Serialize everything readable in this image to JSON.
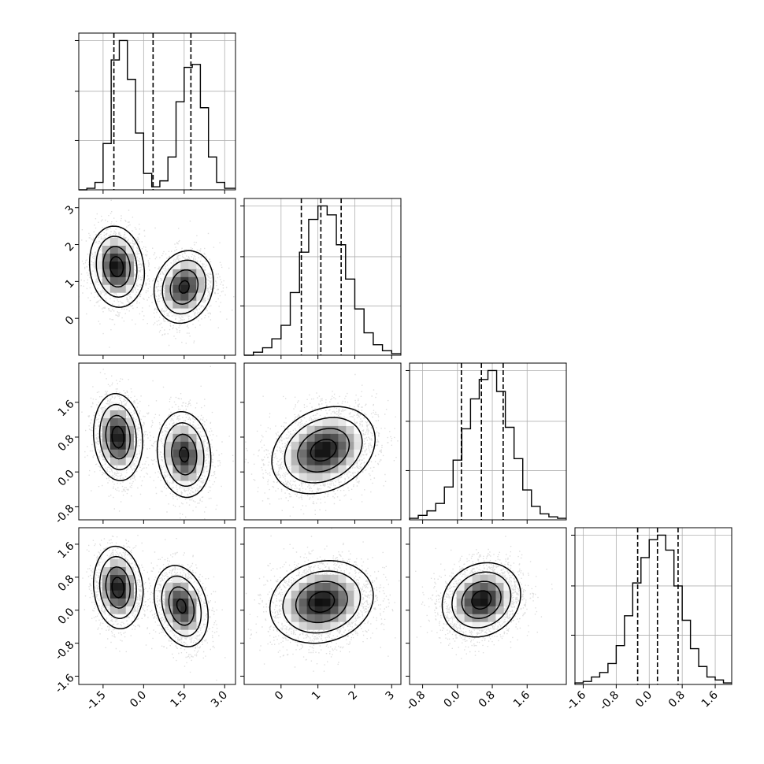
{
  "chart_data": {
    "type": "corner",
    "variables": [
      {
        "xlim": [
          -2.4,
          3.4
        ],
        "xticks": [
          "-1.5",
          "0.0",
          "1.5",
          "3.0"
        ],
        "xtick_values": [
          -1.5,
          0.0,
          1.5,
          3.0
        ]
      },
      {
        "xlim": [
          -1.0,
          3.25
        ],
        "xticks": [
          "0",
          "1",
          "2",
          "3"
        ],
        "xtick_values": [
          0,
          1,
          2,
          3
        ]
      },
      {
        "xlim": [
          -1.1,
          2.5
        ],
        "xticks": [
          "-0.8",
          "0.0",
          "0.8",
          "1.6"
        ],
        "xtick_values": [
          -0.8,
          0.0,
          0.8,
          1.6
        ]
      },
      {
        "xlim": [
          -1.8,
          2.0
        ],
        "xticks": [
          "-1.6",
          "-0.8",
          "0.0",
          "0.8",
          "1.6"
        ],
        "xtick_values": [
          -1.6,
          -0.8,
          0.0,
          0.8,
          1.6
        ]
      }
    ],
    "ylim_2d": [
      null,
      {
        "ylim": [
          -1.0,
          3.25
        ],
        "yticks": [
          "0",
          "1",
          "2",
          "3"
        ],
        "ytick_values": [
          0,
          1,
          2,
          3
        ]
      },
      {
        "ylim": [
          -1.1,
          2.5
        ],
        "yticks": [
          "-0.8",
          "0.0",
          "0.8",
          "1.6"
        ],
        "ytick_values": [
          -0.8,
          0.0,
          0.8,
          1.6
        ]
      },
      {
        "ylim": [
          -1.8,
          2.0
        ],
        "yticks": [
          "-1.6",
          "-0.8",
          "0.0",
          "0.8",
          "1.6"
        ],
        "ytick_values": [
          -1.6,
          -0.8,
          0.0,
          0.8,
          1.6
        ]
      }
    ],
    "histograms": [
      {
        "edges": [
          -2.4,
          -2.1,
          -1.8,
          -1.5,
          -1.2,
          -0.9,
          -0.6,
          -0.3,
          0.0,
          0.3,
          0.6,
          0.9,
          1.2,
          1.5,
          1.8,
          2.1,
          2.4,
          2.7,
          3.0,
          3.4
        ],
        "counts": [
          0.0,
          0.01,
          0.05,
          0.31,
          0.87,
          1.0,
          0.74,
          0.38,
          0.11,
          0.02,
          0.06,
          0.22,
          0.59,
          0.82,
          0.84,
          0.55,
          0.22,
          0.05,
          0.01
        ],
        "quantiles": [
          -1.1,
          0.35,
          1.75
        ]
      },
      {
        "edges": [
          -1.0,
          -0.75,
          -0.5,
          -0.25,
          0.0,
          0.25,
          0.5,
          0.75,
          1.0,
          1.25,
          1.5,
          1.75,
          2.0,
          2.25,
          2.5,
          2.75,
          3.0,
          3.25
        ],
        "counts": [
          0.0,
          0.02,
          0.05,
          0.11,
          0.2,
          0.42,
          0.69,
          0.91,
          1.0,
          0.94,
          0.74,
          0.51,
          0.31,
          0.15,
          0.07,
          0.03,
          0.01
        ],
        "quantiles": [
          0.55,
          1.08,
          1.63
        ]
      },
      {
        "edges": [
          -1.1,
          -0.9,
          -0.7,
          -0.5,
          -0.3,
          -0.1,
          0.1,
          0.3,
          0.5,
          0.7,
          0.9,
          1.1,
          1.3,
          1.5,
          1.7,
          1.9,
          2.1,
          2.3,
          2.5
        ],
        "counts": [
          0.01,
          0.03,
          0.06,
          0.11,
          0.22,
          0.4,
          0.61,
          0.81,
          0.94,
          1.0,
          0.86,
          0.62,
          0.41,
          0.2,
          0.09,
          0.04,
          0.02,
          0.01
        ],
        "quantiles": [
          0.09,
          0.55,
          1.05
        ]
      },
      {
        "edges": [
          -1.8,
          -1.6,
          -1.4,
          -1.2,
          -1.0,
          -0.8,
          -0.6,
          -0.4,
          -0.2,
          0.0,
          0.2,
          0.4,
          0.6,
          0.8,
          1.0,
          1.2,
          1.4,
          1.6,
          1.8,
          2.0
        ],
        "counts": [
          0.01,
          0.02,
          0.05,
          0.08,
          0.14,
          0.26,
          0.46,
          0.68,
          0.85,
          0.97,
          1.0,
          0.9,
          0.66,
          0.43,
          0.24,
          0.12,
          0.05,
          0.03,
          0.01
        ],
        "quantiles": [
          -0.28,
          0.2,
          0.7
        ]
      }
    ],
    "scatter_panels": [
      {
        "row": 1,
        "col": 0,
        "clusters": [
          {
            "cx": -1.0,
            "cy": 1.4,
            "sx": 0.5,
            "sy": 0.55,
            "rho": -0.1,
            "n": 1600
          },
          {
            "cx": 1.5,
            "cy": 0.85,
            "sx": 0.55,
            "sy": 0.5,
            "rho": 0.15,
            "n": 1500
          }
        ]
      },
      {
        "row": 2,
        "col": 0,
        "clusters": [
          {
            "cx": -0.95,
            "cy": 0.8,
            "sx": 0.45,
            "sy": 0.5,
            "rho": -0.1,
            "n": 1600
          },
          {
            "cx": 1.5,
            "cy": 0.4,
            "sx": 0.5,
            "sy": 0.5,
            "rho": -0.1,
            "n": 1500
          }
        ]
      },
      {
        "row": 3,
        "col": 0,
        "clusters": [
          {
            "cx": -0.95,
            "cy": 0.55,
            "sx": 0.45,
            "sy": 0.5,
            "rho": -0.1,
            "n": 1600
          },
          {
            "cx": 1.4,
            "cy": 0.1,
            "sx": 0.5,
            "sy": 0.5,
            "rho": -0.25,
            "n": 1500
          }
        ]
      },
      {
        "row": 2,
        "col": 1,
        "clusters": [
          {
            "cx": 1.15,
            "cy": 0.5,
            "sx": 0.7,
            "sy": 0.5,
            "rho": 0.25,
            "n": 2800
          }
        ]
      },
      {
        "row": 3,
        "col": 1,
        "clusters": [
          {
            "cx": 1.1,
            "cy": 0.2,
            "sx": 0.7,
            "sy": 0.5,
            "rho": 0.15,
            "n": 2800
          }
        ]
      },
      {
        "row": 3,
        "col": 2,
        "clusters": [
          {
            "cx": 0.55,
            "cy": 0.25,
            "sx": 0.45,
            "sy": 0.45,
            "rho": 0.15,
            "n": 2800
          }
        ]
      }
    ],
    "contour_levels_sigma": [
      0.5,
      1.0,
      1.5,
      2.0
    ],
    "grid": true,
    "quantile_line_style": "dashed",
    "colors": {
      "histogram": "#000000",
      "points": "#000000",
      "contour": "#000000",
      "grid": "#b0b0b0"
    }
  }
}
